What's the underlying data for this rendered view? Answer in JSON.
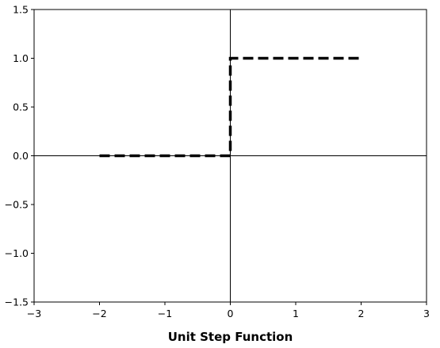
{
  "chart_data": {
    "type": "line",
    "title": "",
    "xlabel": "Unit Step Function",
    "ylabel": "",
    "xlim": [
      -3,
      3
    ],
    "ylim": [
      -1.5,
      1.5
    ],
    "x_ticks": [
      -3,
      -2,
      -1,
      0,
      1,
      2,
      3
    ],
    "y_ticks": [
      -1.5,
      -1.0,
      -0.5,
      0.0,
      0.5,
      1.0,
      1.5
    ],
    "x_tick_labels": [
      "−3",
      "−2",
      "−1",
      "0",
      "1",
      "2",
      "3"
    ],
    "y_tick_labels": [
      "−1.5",
      "−1.0",
      "−0.5",
      "0.0",
      "0.5",
      "1.0",
      "1.5"
    ],
    "grid": false,
    "axis_lines_at_origin": true,
    "series": [
      {
        "x": [
          -2,
          0,
          0,
          2
        ],
        "y": [
          0,
          0,
          1,
          1
        ],
        "color": "#000000",
        "line_style": "dashed"
      }
    ]
  }
}
